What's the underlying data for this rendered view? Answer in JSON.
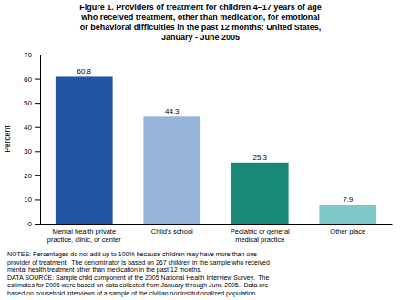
{
  "chart_data": {
    "type": "bar",
    "title": "Figure 1. Providers of treatment for children 4–17 years of age\nwho received treatment, other than medication, for emotional\nor behavioral difficulties in the past 12 months: United States,\nJanuary - June 2005",
    "categories": [
      "Mental health private\npractice, clinic, or center",
      "Child's school",
      "Pediatric or general\nmedical practice",
      "Other place"
    ],
    "values": [
      60.8,
      44.3,
      25.3,
      7.9
    ],
    "colors": [
      "#2255a4",
      "#96b4d8",
      "#1a8a78",
      "#7ec8c8"
    ],
    "ylabel": "Percent",
    "ylim": [
      0,
      70
    ],
    "yticks": [
      0,
      10,
      20,
      30,
      40,
      50,
      60,
      70
    ],
    "grid": false,
    "data_labels": true,
    "annotations": [
      "NOTES: Percentages do not add up to 100% because children may have more than one\nprovider of treatment.  The denominator is based on 267 children in the sample who received\nmental health treatment other than medication in the past 12 months.",
      "DATA SOURCE: Sample child component of the 2005 National Health Interview Survey.  The\nestimates for 2005 were based on data collected from January through June 2005.  Data are\nbased on household interviews of a sample of the civilian noninstitutionalized population."
    ]
  }
}
